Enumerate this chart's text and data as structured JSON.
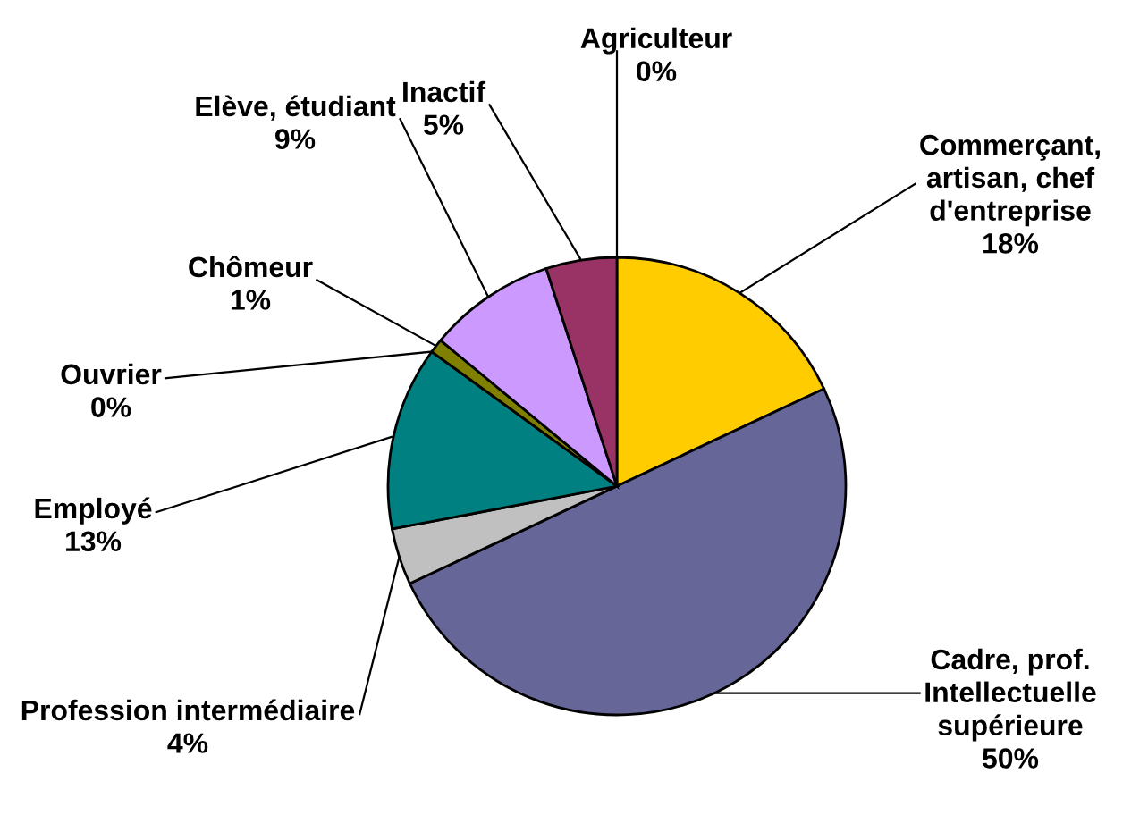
{
  "chart_data": {
    "type": "pie",
    "categories": [
      "Agriculteur",
      "Commerçant, artisan, chef d'entreprise",
      "Cadre, prof. Intellectuelle supérieure",
      "Profession intermédiaire",
      "Employé",
      "Ouvrier",
      "Chômeur",
      "Elève, étudiant",
      "Inactif"
    ],
    "values": [
      0,
      18,
      50,
      4,
      13,
      0,
      1,
      9,
      5
    ],
    "colors": [
      "#333399",
      "#ffcc00",
      "#666699",
      "#c0c0c0",
      "#008080",
      "#ff8080",
      "#808000",
      "#cc99ff",
      "#993366"
    ],
    "value_labels": [
      "0%",
      "18%",
      "50%",
      "4%",
      "13%",
      "0%",
      "1%",
      "9%",
      "5%"
    ]
  }
}
